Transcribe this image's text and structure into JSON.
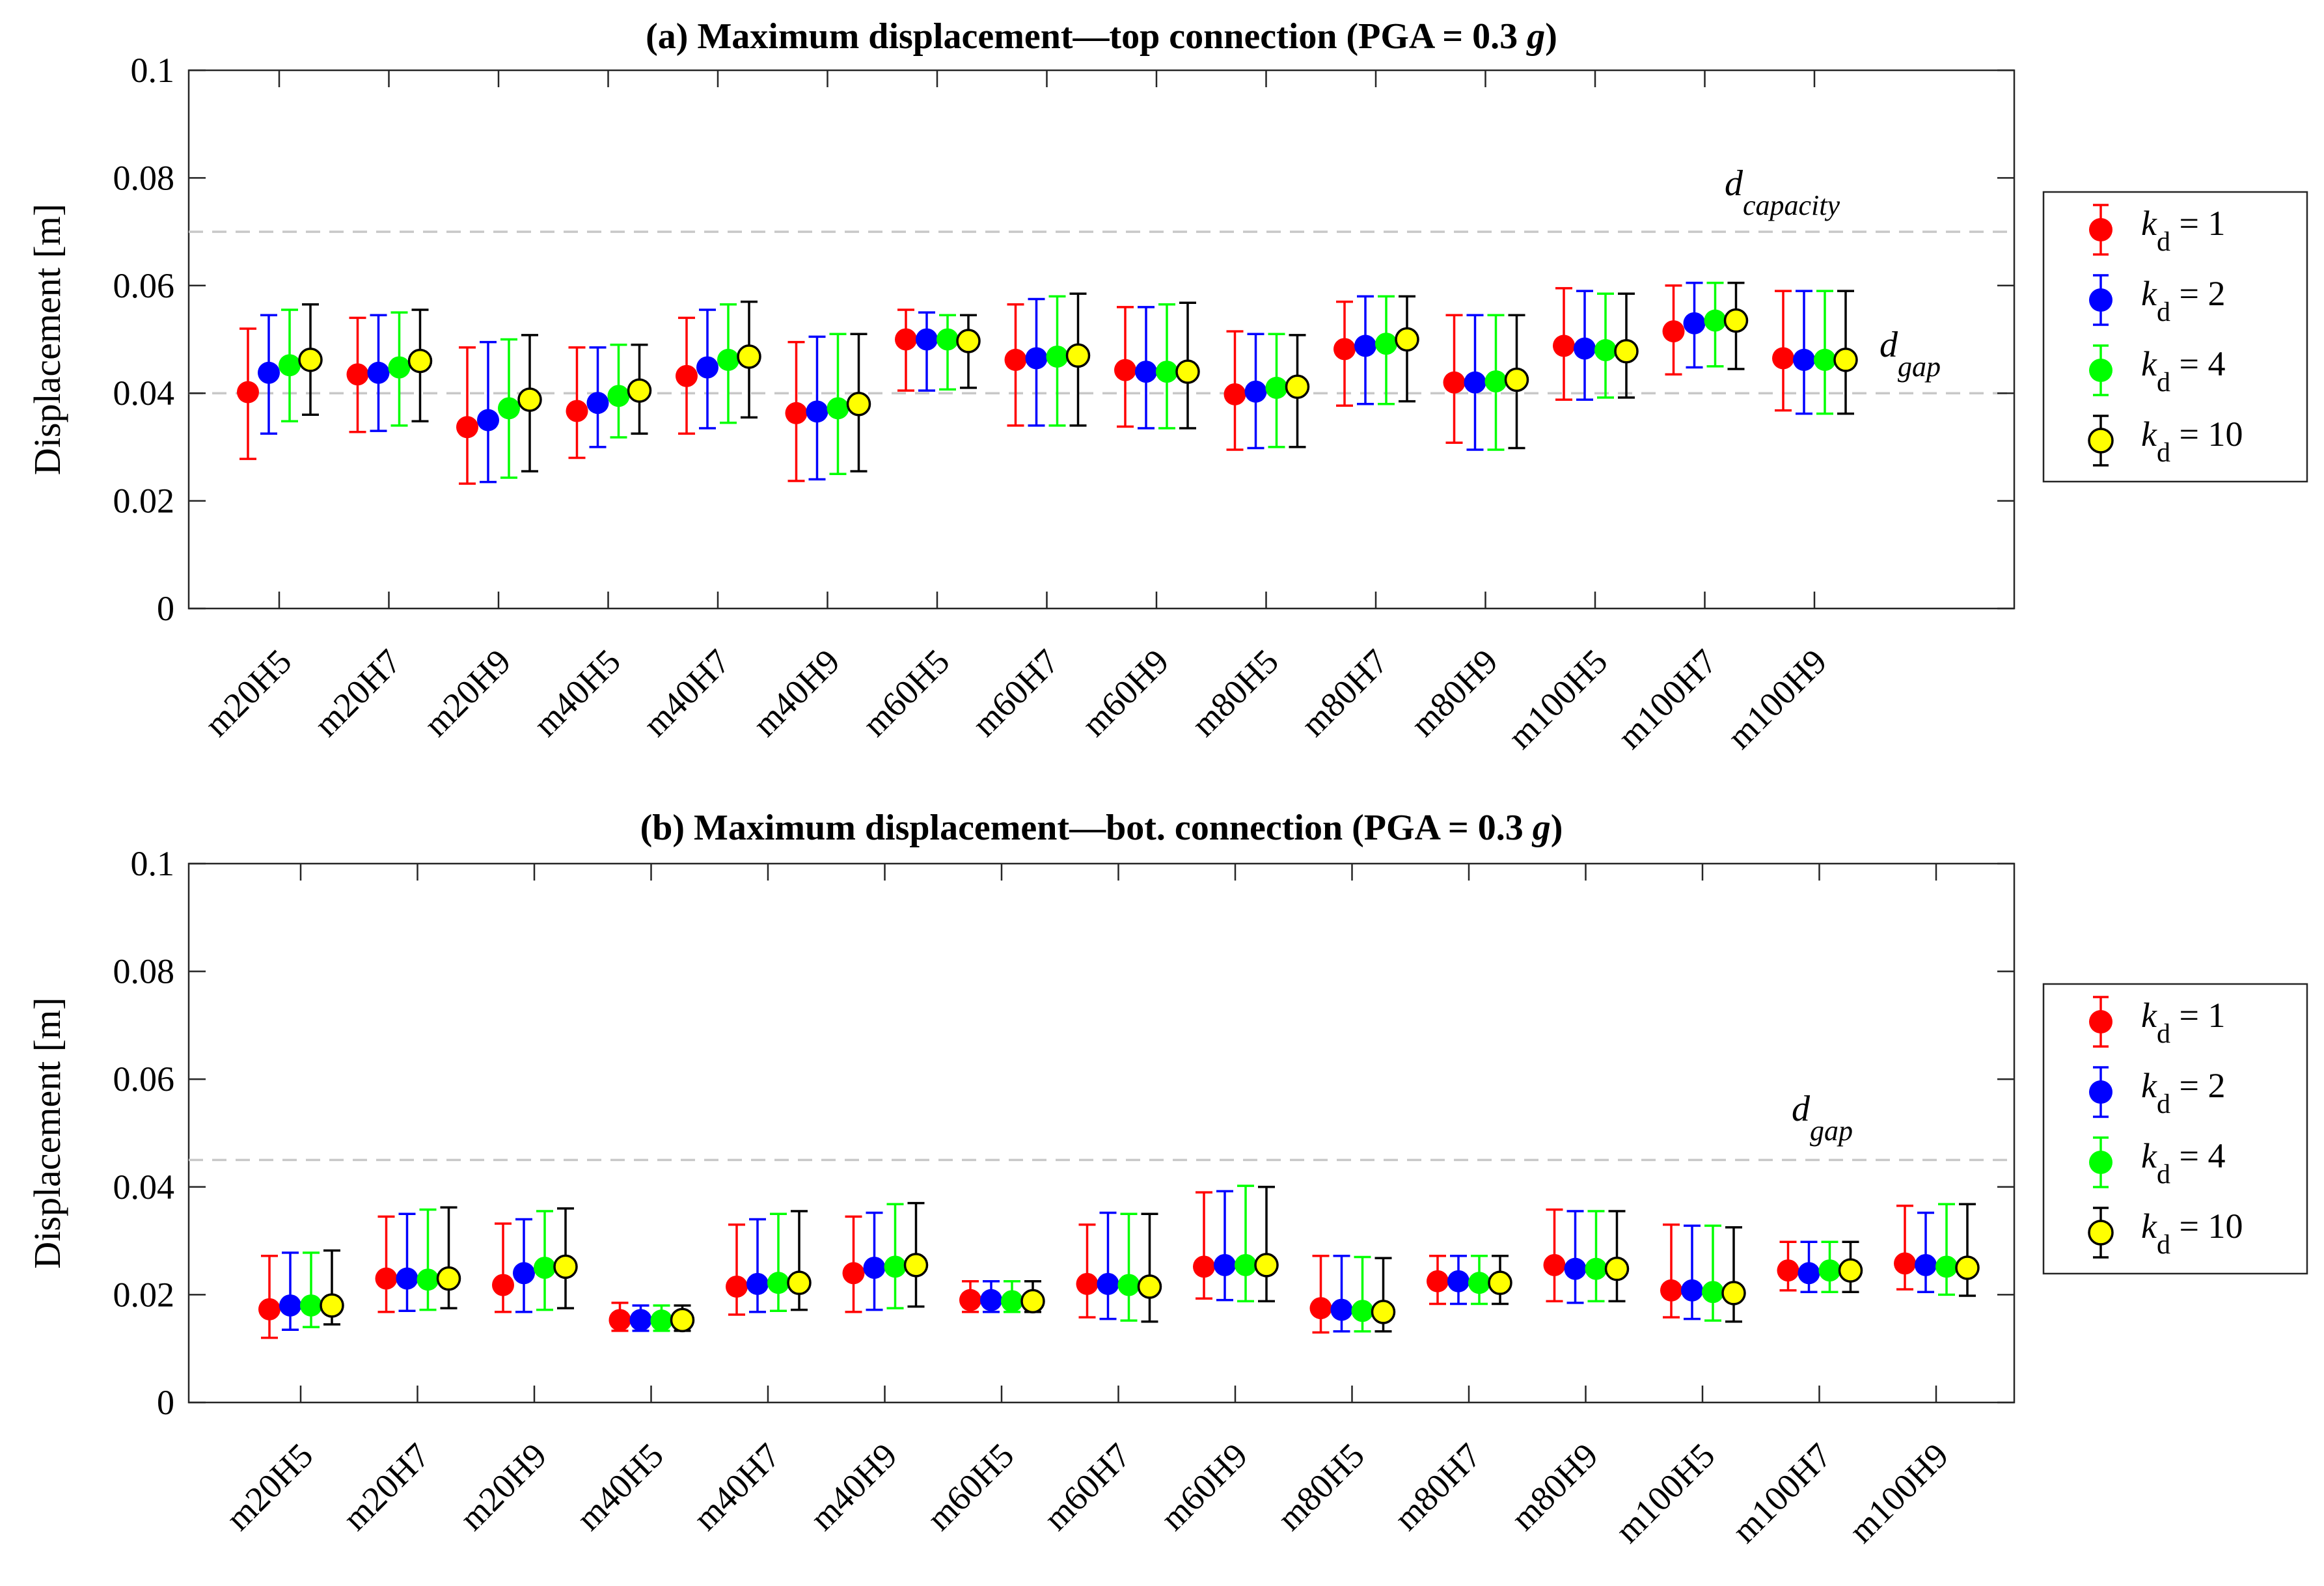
{
  "colors": {
    "kd1": "#ff0000",
    "kd2": "#0000ff",
    "kd4": "#00ff00",
    "kd10": "#000000",
    "kd10_marker": "#ffff00",
    "ref_line": "#c8c8c8"
  },
  "chart_data": [
    {
      "type": "scatter",
      "subtype": "errorbar",
      "title_prefix": "(a) Maximum displacement—top connection (PGA = 0.3 ",
      "title_g": "g",
      "title_suffix": ")",
      "xlabel": "",
      "ylabel": "Displacement [m]",
      "ylim": [
        0,
        0.1
      ],
      "yticks": [
        0,
        0.02,
        0.04,
        0.06,
        0.08,
        0.1
      ],
      "ytick_labels": [
        "0",
        "0.02",
        "0.04",
        "0.06",
        "0.08",
        "0.1"
      ],
      "grid": false,
      "legend_position": "outside-right",
      "categories": [
        "m20H5",
        "m20H7",
        "m20H9",
        "m40H5",
        "m40H7",
        "m40H9",
        "m60H5",
        "m60H7",
        "m60H9",
        "m80H5",
        "m80H7",
        "m80H9",
        "m100H5",
        "m100H7",
        "m100H9"
      ],
      "reference_lines": [
        {
          "name": "capacity",
          "label_main": "d",
          "label_sub": "capacity",
          "y": 0.07
        },
        {
          "name": "gap",
          "label_main": "d",
          "label_sub": "gap",
          "y": 0.04
        }
      ],
      "series": [
        {
          "name": "k_d = 1",
          "kd": "1",
          "color_key": "kd1",
          "values": [
            0.0402,
            0.0435,
            0.0337,
            0.0367,
            0.0432,
            0.0363,
            0.05,
            0.0462,
            0.0443,
            0.0398,
            0.0482,
            0.042,
            0.0488,
            0.0515,
            0.0465
          ],
          "lower": [
            0.0278,
            0.0328,
            0.0232,
            0.028,
            0.0325,
            0.0237,
            0.0405,
            0.034,
            0.0338,
            0.0295,
            0.0377,
            0.0308,
            0.0388,
            0.0435,
            0.0368
          ],
          "upper": [
            0.052,
            0.054,
            0.0485,
            0.0485,
            0.054,
            0.0495,
            0.0555,
            0.0565,
            0.056,
            0.0515,
            0.057,
            0.0545,
            0.0595,
            0.06,
            0.059
          ]
        },
        {
          "name": "k_d = 2",
          "kd": "2",
          "color_key": "kd2",
          "values": [
            0.0438,
            0.0438,
            0.035,
            0.0382,
            0.0448,
            0.0366,
            0.05,
            0.0465,
            0.044,
            0.0403,
            0.0488,
            0.042,
            0.0483,
            0.053,
            0.0462
          ],
          "lower": [
            0.0325,
            0.033,
            0.0235,
            0.03,
            0.0335,
            0.024,
            0.0405,
            0.034,
            0.0335,
            0.0298,
            0.038,
            0.0295,
            0.0388,
            0.0448,
            0.0362
          ],
          "upper": [
            0.0545,
            0.0545,
            0.0495,
            0.0485,
            0.0555,
            0.0505,
            0.055,
            0.0575,
            0.056,
            0.051,
            0.058,
            0.0545,
            0.059,
            0.0605,
            0.059
          ]
        },
        {
          "name": "k_d = 4",
          "kd": "4",
          "color_key": "kd4",
          "values": [
            0.0452,
            0.0448,
            0.0372,
            0.0395,
            0.0462,
            0.0372,
            0.05,
            0.0468,
            0.044,
            0.041,
            0.0492,
            0.0422,
            0.048,
            0.0535,
            0.0462
          ],
          "lower": [
            0.0348,
            0.034,
            0.0243,
            0.0318,
            0.0345,
            0.025,
            0.0407,
            0.034,
            0.0335,
            0.03,
            0.038,
            0.0295,
            0.0392,
            0.045,
            0.0362
          ],
          "upper": [
            0.0555,
            0.055,
            0.05,
            0.049,
            0.0565,
            0.051,
            0.0545,
            0.058,
            0.0565,
            0.051,
            0.058,
            0.0545,
            0.0585,
            0.0605,
            0.059
          ]
        },
        {
          "name": "k_d = 10",
          "kd": "10",
          "color_key": "kd10",
          "values": [
            0.0462,
            0.046,
            0.0388,
            0.0405,
            0.0468,
            0.038,
            0.0497,
            0.047,
            0.044,
            0.0412,
            0.05,
            0.0425,
            0.0478,
            0.0535,
            0.0462
          ],
          "lower": [
            0.036,
            0.0348,
            0.0255,
            0.0325,
            0.0355,
            0.0255,
            0.041,
            0.034,
            0.0335,
            0.03,
            0.0385,
            0.0298,
            0.0392,
            0.0445,
            0.0362
          ],
          "upper": [
            0.0565,
            0.0555,
            0.0508,
            0.049,
            0.057,
            0.051,
            0.0545,
            0.0585,
            0.0568,
            0.0508,
            0.058,
            0.0545,
            0.0585,
            0.0605,
            0.059
          ]
        }
      ]
    },
    {
      "type": "scatter",
      "subtype": "errorbar",
      "title_prefix": "(b) Maximum displacement—bot. connection (PGA = 0.3 ",
      "title_g": "g",
      "title_suffix": ")",
      "xlabel": "",
      "ylabel": "Displacement [m]",
      "ylim": [
        0,
        0.1
      ],
      "yticks": [
        0,
        0.02,
        0.04,
        0.06,
        0.08,
        0.1
      ],
      "ytick_labels": [
        "0",
        "0.02",
        "0.04",
        "0.06",
        "0.08",
        "0.1"
      ],
      "grid": false,
      "legend_position": "outside-right",
      "categories": [
        "m20H5",
        "m20H7",
        "m20H9",
        "m40H5",
        "m40H7",
        "m40H9",
        "m60H5",
        "m60H7",
        "m60H9",
        "m80H5",
        "m80H7",
        "m80H9",
        "m100H5",
        "m100H7",
        "m100H9"
      ],
      "reference_lines": [
        {
          "name": "gap",
          "label_main": "d",
          "label_sub": "gap",
          "y": 0.045
        }
      ],
      "series": [
        {
          "name": "k_d = 1",
          "kd": "1",
          "color_key": "kd1",
          "values": [
            0.0173,
            0.023,
            0.0218,
            0.0153,
            0.0215,
            0.024,
            0.019,
            0.022,
            0.0252,
            0.0175,
            0.0225,
            0.0255,
            0.0208,
            0.0245,
            0.0258
          ],
          "lower": [
            0.012,
            0.0168,
            0.0168,
            0.0133,
            0.0163,
            0.0168,
            0.0168,
            0.0158,
            0.0193,
            0.013,
            0.0183,
            0.0188,
            0.0158,
            0.0208,
            0.021
          ],
          "upper": [
            0.0272,
            0.0345,
            0.0332,
            0.0185,
            0.033,
            0.0345,
            0.0225,
            0.033,
            0.039,
            0.0272,
            0.0272,
            0.0358,
            0.033,
            0.0298,
            0.0365
          ]
        },
        {
          "name": "k_d = 2",
          "kd": "2",
          "color_key": "kd2",
          "values": [
            0.018,
            0.023,
            0.024,
            0.0153,
            0.022,
            0.025,
            0.019,
            0.022,
            0.0255,
            0.0172,
            0.0225,
            0.0248,
            0.0208,
            0.024,
            0.0255
          ],
          "lower": [
            0.0135,
            0.017,
            0.0168,
            0.0133,
            0.0168,
            0.0172,
            0.0168,
            0.0155,
            0.019,
            0.0132,
            0.0183,
            0.0185,
            0.0155,
            0.0205,
            0.0205
          ],
          "upper": [
            0.0278,
            0.035,
            0.034,
            0.018,
            0.034,
            0.0352,
            0.0225,
            0.0352,
            0.0392,
            0.0272,
            0.0272,
            0.0355,
            0.0328,
            0.0298,
            0.0352
          ]
        },
        {
          "name": "k_d = 4",
          "kd": "4",
          "color_key": "kd4",
          "values": [
            0.018,
            0.0228,
            0.025,
            0.0152,
            0.0222,
            0.0252,
            0.0188,
            0.0218,
            0.0255,
            0.017,
            0.0222,
            0.0248,
            0.0205,
            0.0245,
            0.0252
          ],
          "lower": [
            0.014,
            0.0172,
            0.0172,
            0.0133,
            0.017,
            0.0175,
            0.0168,
            0.0152,
            0.0188,
            0.0132,
            0.0183,
            0.0188,
            0.0152,
            0.0205,
            0.02
          ],
          "upper": [
            0.0278,
            0.0358,
            0.0355,
            0.018,
            0.035,
            0.0368,
            0.0225,
            0.035,
            0.0402,
            0.027,
            0.0272,
            0.0355,
            0.0328,
            0.0298,
            0.0368
          ]
        },
        {
          "name": "k_d = 10",
          "kd": "10",
          "color_key": "kd10",
          "values": [
            0.018,
            0.023,
            0.0252,
            0.0153,
            0.0222,
            0.0255,
            0.0188,
            0.0215,
            0.0255,
            0.0168,
            0.0222,
            0.0248,
            0.0203,
            0.0245,
            0.025
          ],
          "lower": [
            0.0145,
            0.0175,
            0.0175,
            0.0133,
            0.0172,
            0.0178,
            0.0168,
            0.015,
            0.0188,
            0.0132,
            0.0183,
            0.0188,
            0.015,
            0.0205,
            0.0198
          ],
          "upper": [
            0.0282,
            0.0362,
            0.036,
            0.018,
            0.0355,
            0.037,
            0.0225,
            0.035,
            0.04,
            0.0268,
            0.0272,
            0.0355,
            0.0325,
            0.0298,
            0.0368
          ]
        }
      ]
    }
  ]
}
